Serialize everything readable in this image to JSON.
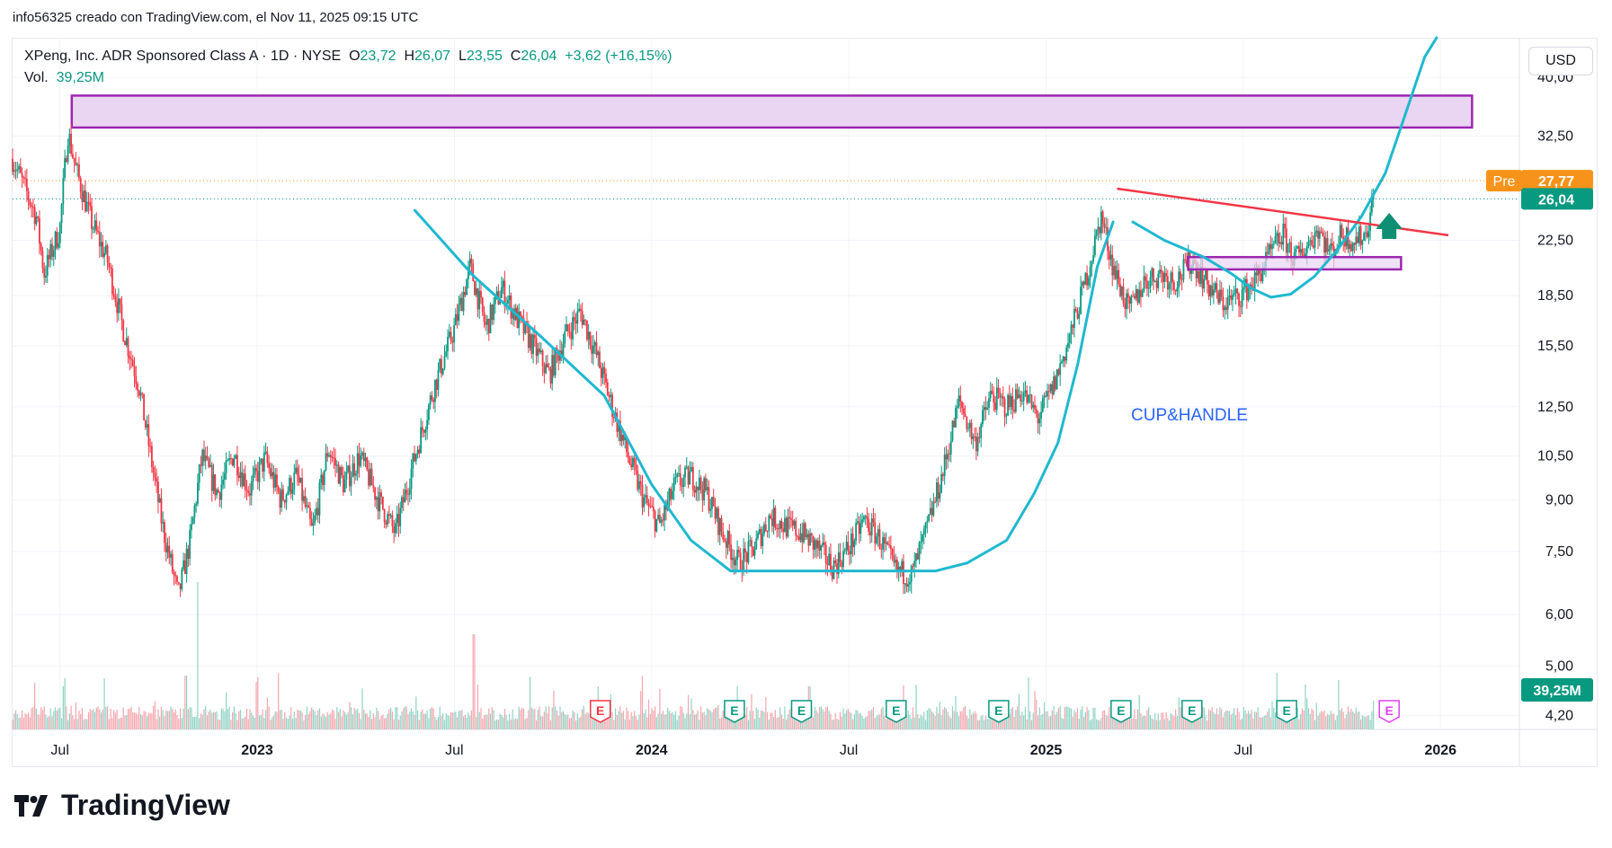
{
  "caption": "info56325 creado con TradingView.com, el Nov 11, 2025 09:15 UTC",
  "currency": "USD",
  "legend": {
    "title": "XPeng, Inc. ADR Sponsored Class A · 1D · NYSE",
    "open_label": "O",
    "open": "23,72",
    "high_label": "H",
    "high": "26,07",
    "low_label": "L",
    "low": "23,55",
    "close_label": "C",
    "close": "26,04",
    "change": "+3,62 (+16,15%)",
    "vol_label": "Vol.",
    "vol": "39,25M"
  },
  "logo_text": "TradingView",
  "colors": {
    "up": "#089981",
    "down": "#f23645",
    "cup": "#1fb8d0",
    "trend": "#f23645",
    "zone_fill": "#ead5f2",
    "zone_border": "#9c27b0",
    "pre": "#f7931a",
    "arrow": "#0e8f74",
    "annotation": "#2962ff"
  },
  "chart_data": {
    "type": "candlestick",
    "title": "XPeng, Inc. ADR Sponsored Class A · 1D · NYSE",
    "scale": "log",
    "ylim": [
      4.0,
      46.0
    ],
    "y_ticks": [
      "40,00",
      "32,50",
      "26,04",
      "22,50",
      "18,50",
      "15,50",
      "12,50",
      "10,50",
      "9,00",
      "7,50",
      "6,00",
      "5,00",
      "4,20"
    ],
    "y_tick_values": [
      40.0,
      32.5,
      26.04,
      22.5,
      18.5,
      15.5,
      12.5,
      10.5,
      9.0,
      7.5,
      6.0,
      5.0,
      4.2
    ],
    "x_ticks": [
      "Jul",
      "2023",
      "Jul",
      "2024",
      "Jul",
      "2025",
      "Jul",
      "2026"
    ],
    "x_tick_values": [
      2022.5,
      2023.0,
      2023.5,
      2024.0,
      2024.5,
      2025.0,
      2025.5,
      2026.0
    ],
    "xlim": [
      2022.38,
      2026.2
    ],
    "last_price": 26.04,
    "last_price_label": "26,04",
    "pre_label": "Pre",
    "pre_price": 27.77,
    "pre_price_label": "27,77",
    "volume_label": "39,25M",
    "price_path": [
      [
        2022.38,
        30.0
      ],
      [
        2022.44,
        24.5
      ],
      [
        2022.46,
        20.0
      ],
      [
        2022.5,
        23.5
      ],
      [
        2022.52,
        33.0
      ],
      [
        2022.54,
        29.0
      ],
      [
        2022.58,
        24.0
      ],
      [
        2022.62,
        21.0
      ],
      [
        2022.66,
        16.5
      ],
      [
        2022.7,
        13.5
      ],
      [
        2022.73,
        10.5
      ],
      [
        2022.76,
        8.2
      ],
      [
        2022.8,
        6.4
      ],
      [
        2022.83,
        7.8
      ],
      [
        2022.86,
        10.5
      ],
      [
        2022.9,
        9.2
      ],
      [
        2022.94,
        10.6
      ],
      [
        2022.98,
        9.3
      ],
      [
        2023.02,
        10.4
      ],
      [
        2023.06,
        9.0
      ],
      [
        2023.1,
        9.8
      ],
      [
        2023.14,
        8.0
      ],
      [
        2023.18,
        10.8
      ],
      [
        2023.22,
        9.5
      ],
      [
        2023.26,
        10.5
      ],
      [
        2023.3,
        9.2
      ],
      [
        2023.35,
        8.0
      ],
      [
        2023.4,
        10.5
      ],
      [
        2023.45,
        13.5
      ],
      [
        2023.5,
        16.5
      ],
      [
        2023.54,
        20.5
      ],
      [
        2023.58,
        16.5
      ],
      [
        2023.62,
        19.0
      ],
      [
        2023.66,
        17.0
      ],
      [
        2023.7,
        15.5
      ],
      [
        2023.74,
        14.0
      ],
      [
        2023.78,
        16.0
      ],
      [
        2023.82,
        17.5
      ],
      [
        2023.86,
        15.0
      ],
      [
        2023.9,
        12.5
      ],
      [
        2023.94,
        10.5
      ],
      [
        2023.98,
        9.0
      ],
      [
        2024.02,
        8.2
      ],
      [
        2024.06,
        9.5
      ],
      [
        2024.1,
        9.8
      ],
      [
        2024.14,
        9.2
      ],
      [
        2024.18,
        8.0
      ],
      [
        2024.22,
        7.2
      ],
      [
        2024.26,
        7.6
      ],
      [
        2024.3,
        8.5
      ],
      [
        2024.34,
        8.2
      ],
      [
        2024.38,
        8.0
      ],
      [
        2024.42,
        7.6
      ],
      [
        2024.46,
        7.1
      ],
      [
        2024.5,
        7.6
      ],
      [
        2024.54,
        8.4
      ],
      [
        2024.58,
        7.8
      ],
      [
        2024.62,
        7.0
      ],
      [
        2024.66,
        6.9
      ],
      [
        2024.7,
        8.2
      ],
      [
        2024.74,
        10.0
      ],
      [
        2024.78,
        12.8
      ],
      [
        2024.82,
        11.0
      ],
      [
        2024.86,
        13.0
      ],
      [
        2024.9,
        12.5
      ],
      [
        2024.94,
        13.2
      ],
      [
        2024.98,
        12.0
      ],
      [
        2025.02,
        13.5
      ],
      [
        2025.06,
        16.0
      ],
      [
        2025.1,
        19.5
      ],
      [
        2025.14,
        24.5
      ],
      [
        2025.17,
        20.5
      ],
      [
        2025.21,
        17.5
      ],
      [
        2025.25,
        19.5
      ],
      [
        2025.29,
        20.0
      ],
      [
        2025.33,
        19.5
      ],
      [
        2025.37,
        21.0
      ],
      [
        2025.41,
        19.2
      ],
      [
        2025.45,
        18.0
      ],
      [
        2025.49,
        18.5
      ],
      [
        2025.53,
        19.5
      ],
      [
        2025.57,
        21.5
      ],
      [
        2025.6,
        23.0
      ],
      [
        2025.63,
        21.0
      ],
      [
        2025.66,
        22.0
      ],
      [
        2025.69,
        23.5
      ],
      [
        2025.72,
        21.5
      ],
      [
        2025.75,
        23.0
      ],
      [
        2025.78,
        22.5
      ],
      [
        2025.81,
        23.0
      ],
      [
        2025.83,
        26.0
      ]
    ],
    "volume_spikes": [
      [
        2022.82,
        0.3
      ],
      [
        2022.85,
        0.82
      ],
      [
        2023.55,
        0.53
      ],
      [
        2024.4,
        0.24
      ],
      [
        2025.83,
        0.16
      ]
    ],
    "earnings_markers": [
      {
        "x": 2023.87,
        "label": "E",
        "kind": "negative"
      },
      {
        "x": 2024.21,
        "label": "E",
        "kind": "positive"
      },
      {
        "x": 2024.38,
        "label": "E",
        "kind": "positive"
      },
      {
        "x": 2024.62,
        "label": "E",
        "kind": "positive"
      },
      {
        "x": 2024.88,
        "label": "E",
        "kind": "positive"
      },
      {
        "x": 2025.19,
        "label": "E",
        "kind": "positive"
      },
      {
        "x": 2025.37,
        "label": "E",
        "kind": "positive"
      },
      {
        "x": 2025.61,
        "label": "E",
        "kind": "positive"
      },
      {
        "x": 2025.87,
        "label": "E",
        "kind": "upcoming"
      }
    ],
    "annotations": {
      "pattern_label": "CUP&HANDLE",
      "resistance_zone": {
        "x": [
          2022.53,
          2026.08
        ],
        "y": [
          33.5,
          37.5
        ]
      },
      "handle_zone": {
        "x": [
          2025.36,
          2025.9
        ],
        "y": [
          20.3,
          21.2
        ]
      },
      "trend_line": [
        [
          2025.18,
          27.0
        ],
        [
          2026.02,
          22.9
        ]
      ],
      "cup_curve": [
        [
          2023.4,
          25.0
        ],
        [
          2023.55,
          19.8
        ],
        [
          2023.72,
          16.0
        ],
        [
          2023.88,
          13.0
        ],
        [
          2024.0,
          9.5
        ],
        [
          2024.1,
          7.8
        ],
        [
          2024.2,
          7.0
        ],
        [
          2024.4,
          7.0
        ],
        [
          2024.6,
          7.0
        ],
        [
          2024.72,
          7.0
        ],
        [
          2024.8,
          7.2
        ],
        [
          2024.9,
          7.8
        ],
        [
          2024.97,
          9.2
        ],
        [
          2025.03,
          11.0
        ],
        [
          2025.08,
          14.5
        ],
        [
          2025.13,
          20.5
        ],
        [
          2025.17,
          24.0
        ]
      ],
      "handle_curve": [
        [
          2025.22,
          24.0
        ],
        [
          2025.3,
          22.5
        ],
        [
          2025.4,
          21.2
        ],
        [
          2025.47,
          20.0
        ],
        [
          2025.52,
          19.0
        ],
        [
          2025.57,
          18.4
        ],
        [
          2025.62,
          18.6
        ],
        [
          2025.68,
          19.8
        ],
        [
          2025.74,
          21.8
        ],
        [
          2025.8,
          24.5
        ],
        [
          2025.86,
          28.5
        ],
        [
          2025.91,
          35.0
        ],
        [
          2025.96,
          43.0
        ],
        [
          2025.99,
          46.0
        ]
      ],
      "breakout_arrow": {
        "x": 2025.87,
        "y": 22.6
      }
    }
  }
}
